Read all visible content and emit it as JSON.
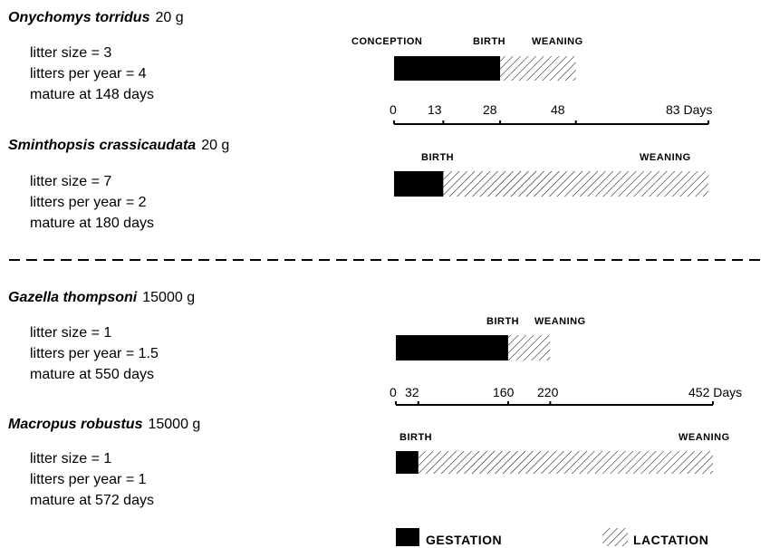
{
  "colors": {
    "gestation": "#000000",
    "lactation_hatch": "#000000",
    "background": "#ffffff"
  },
  "species": [
    {
      "name": "Onychomys torridus",
      "mass": "20 g",
      "litter_size": "litter size = 3",
      "litters_per_year": "litters per year = 4",
      "mature": "mature at 148 days",
      "labels": [
        "CONCEPTION",
        "BIRTH",
        "WEANING"
      ]
    },
    {
      "name": "Sminthopsis crassicaudata",
      "mass": "20 g",
      "litter_size": "litter size = 7",
      "litters_per_year": "litters per year = 2",
      "mature": "mature at 180 days",
      "labels": [
        "BIRTH",
        "WEANING"
      ]
    },
    {
      "name": "Gazella thompsoni",
      "mass": "15000 g",
      "litter_size": "litter size = 1",
      "litters_per_year": "litters per year = 1.5",
      "mature": "mature at 550 days",
      "labels": [
        "BIRTH",
        "WEANING"
      ]
    },
    {
      "name": "Macropus robustus",
      "mass": "15000 g",
      "litter_size": "litter size = 1",
      "litters_per_year": "litters per year = 1",
      "mature": "mature at 572 days",
      "labels": [
        "BIRTH",
        "WEANING"
      ]
    }
  ],
  "axes": [
    {
      "ticks": [
        "0",
        "13",
        "28",
        "48",
        "83 Days"
      ],
      "values": [
        0,
        13,
        28,
        48,
        83
      ],
      "max": 83
    },
    {
      "ticks": [
        "0",
        "32",
        "160",
        "220",
        "452 Days"
      ],
      "values": [
        0,
        32,
        160,
        220,
        452
      ],
      "max": 452
    }
  ],
  "chart_data": {
    "type": "bar",
    "series": [
      {
        "species": "Onychomys torridus",
        "axis": 0,
        "gestation": [
          0,
          28
        ],
        "lactation": [
          28,
          48
        ]
      },
      {
        "species": "Sminthopsis crassicaudata",
        "axis": 0,
        "gestation": [
          0,
          13
        ],
        "lactation": [
          13,
          83
        ]
      },
      {
        "species": "Gazella thompsoni",
        "axis": 1,
        "gestation": [
          0,
          160
        ],
        "lactation": [
          160,
          220
        ]
      },
      {
        "species": "Macropus robustus",
        "axis": 1,
        "gestation": [
          0,
          32
        ],
        "lactation": [
          32,
          452
        ]
      }
    ]
  },
  "legend": {
    "gestation": "GESTATION",
    "lactation": "LACTATION"
  }
}
